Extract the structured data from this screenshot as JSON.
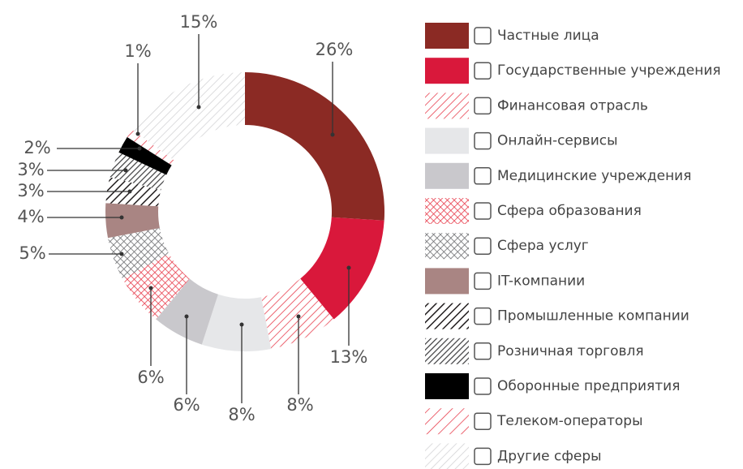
{
  "chart_data": {
    "type": "donut",
    "categories": [
      "Частные лица",
      "Государственные учреждения",
      "Финансовая отрасль",
      "Онлайн-сервисы",
      "Медицинские учреждения",
      "Сфера образования",
      "Сфера услуг",
      "IT-компании",
      "Промышленные компании",
      "Розничная торговля",
      "Оборонные предприятия",
      "Телеком-операторы",
      "Другие сферы"
    ],
    "values": [
      26,
      13,
      8,
      8,
      6,
      6,
      5,
      4,
      3,
      3,
      2,
      1,
      15
    ],
    "value_labels": [
      "26%",
      "13%",
      "8%",
      "8%",
      "6%",
      "6%",
      "5%",
      "4%",
      "3%",
      "3%",
      "2%",
      "1%",
      "15%"
    ],
    "colors": [
      "#8b2a24",
      "#d9183b",
      "#e8404f",
      "#e6e7e9",
      "#c9c8cc",
      "#e8404f",
      "#6d6e71",
      "#a98583",
      "#231f20",
      "#3c3c3e",
      "#000000",
      "#e8404f",
      "#d4d4d6"
    ],
    "patterns": [
      "solid",
      "solid",
      "hatch",
      "solid",
      "solid",
      "cross",
      "cross",
      "solid",
      "hatch",
      "hatch-dense",
      "solid",
      "hatch-wide",
      "hatch"
    ]
  }
}
